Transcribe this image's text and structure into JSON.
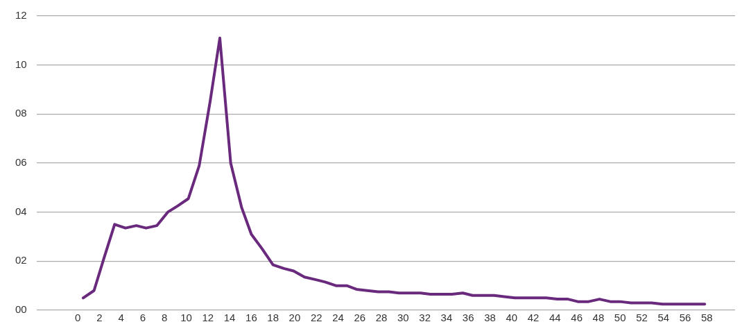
{
  "chart_data": {
    "type": "line",
    "color": "#692a7d",
    "grid": "y",
    "marker": "none",
    "line_style": "solid",
    "x": [
      0.5,
      1.5,
      2.4,
      3.4,
      4.4,
      5.4,
      6.3,
      7.3,
      8.3,
      9.2,
      10.2,
      11.2,
      12.2,
      13.1,
      14.1,
      15.1,
      16.0,
      17.0,
      18.0,
      19.0,
      19.9,
      20.9,
      21.9,
      22.8,
      23.8,
      24.8,
      25.7,
      26.7,
      27.7,
      28.7,
      29.6,
      30.6,
      31.6,
      32.5,
      33.5,
      34.5,
      35.5,
      36.4,
      37.4,
      38.4,
      39.3,
      40.3,
      41.3,
      42.3,
      43.2,
      44.2,
      45.2,
      46.1,
      47.1,
      48.1,
      49.1,
      50.0,
      51.0,
      52.0,
      52.9,
      53.9,
      54.9,
      55.9,
      56.8,
      57.8
    ],
    "values": [
      0.5,
      0.8,
      2.1,
      3.5,
      3.35,
      3.45,
      3.35,
      3.45,
      4.0,
      4.25,
      4.55,
      5.9,
      8.5,
      11.1,
      6.0,
      4.2,
      3.1,
      2.5,
      1.85,
      1.7,
      1.6,
      1.35,
      1.25,
      1.15,
      1.0,
      1.0,
      0.85,
      0.8,
      0.75,
      0.75,
      0.7,
      0.7,
      0.7,
      0.65,
      0.65,
      0.65,
      0.7,
      0.6,
      0.6,
      0.6,
      0.55,
      0.5,
      0.5,
      0.5,
      0.5,
      0.45,
      0.45,
      0.35,
      0.35,
      0.45,
      0.35,
      0.35,
      0.3,
      0.3,
      0.3,
      0.25,
      0.25,
      0.25,
      0.25,
      0.25
    ],
    "xlim": [
      -3.8,
      60.6
    ],
    "xticks": [
      0,
      2,
      4,
      6,
      8,
      10,
      12,
      14,
      16,
      18,
      20,
      22,
      24,
      26,
      28,
      30,
      32,
      34,
      36,
      38,
      40,
      42,
      44,
      46,
      48,
      50,
      52,
      54,
      56,
      58
    ],
    "ylim": [
      0,
      12
    ],
    "yticks": [
      {
        "value": 0,
        "label": "00"
      },
      {
        "value": 2,
        "label": "02"
      },
      {
        "value": 4,
        "label": "04"
      },
      {
        "value": 6,
        "label": "06"
      },
      {
        "value": 8,
        "label": "08"
      },
      10,
      12
    ],
    "legend": false
  }
}
